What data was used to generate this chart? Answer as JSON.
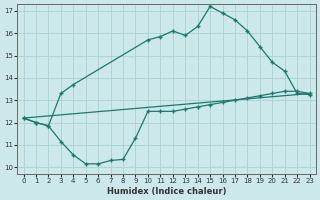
{
  "line1_x": [
    0,
    1,
    2,
    3,
    4,
    10,
    11,
    12,
    13,
    14,
    15,
    16,
    17,
    18,
    19,
    20,
    21,
    22,
    23
  ],
  "line1_y": [
    12.2,
    12.0,
    11.85,
    13.3,
    13.7,
    15.7,
    15.85,
    16.1,
    15.9,
    16.3,
    17.2,
    16.9,
    16.6,
    16.1,
    15.4,
    14.7,
    14.3,
    13.3,
    13.25
  ],
  "line2_x": [
    0,
    1,
    2,
    3,
    4,
    5,
    6,
    7,
    8,
    9,
    10,
    11,
    12,
    13,
    14,
    15,
    16,
    17,
    18,
    19,
    20,
    21,
    22,
    23
  ],
  "line2_y": [
    12.2,
    12.0,
    11.85,
    11.15,
    10.55,
    10.15,
    10.15,
    10.3,
    10.35,
    11.3,
    12.5,
    12.5,
    12.5,
    12.6,
    12.7,
    12.8,
    12.9,
    13.0,
    13.1,
    13.2,
    13.3,
    13.4,
    13.4,
    13.3
  ],
  "line3_x": [
    0,
    23
  ],
  "line3_y": [
    12.2,
    13.3
  ],
  "color": "#1a7a6e",
  "bg_color": "#cce8ea",
  "grid_color": "#aed4d6",
  "xlabel": "Humidex (Indice chaleur)",
  "xlim": [
    0,
    23
  ],
  "ylim": [
    10,
    17
  ],
  "yticks": [
    10,
    11,
    12,
    13,
    14,
    15,
    16,
    17
  ],
  "xticks": [
    0,
    1,
    2,
    3,
    4,
    5,
    6,
    7,
    8,
    9,
    10,
    11,
    12,
    13,
    14,
    15,
    16,
    17,
    18,
    19,
    20,
    21,
    22,
    23
  ]
}
